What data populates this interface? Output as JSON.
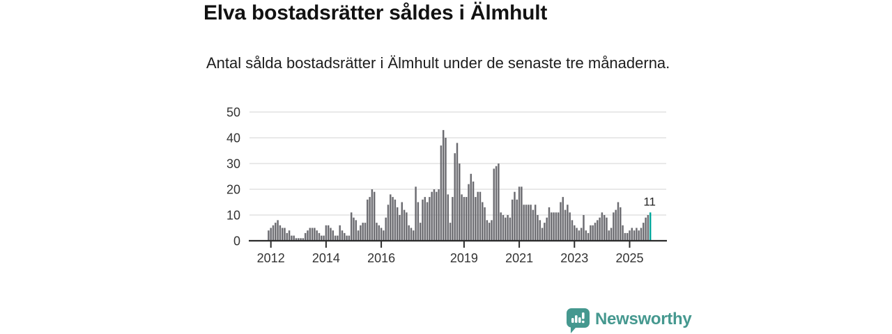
{
  "header": {
    "title": "Elva bostadsrätter såldes i Älmhult",
    "subtitle": "Antal sålda bostadsrätter i Älmhult under de senaste tre månaderna."
  },
  "chart_data": {
    "type": "bar",
    "title": "Elva bostadsrätter såldes i Älmhult",
    "subtitle": "Antal sålda bostadsrätter i Älmhult under de senaste tre månaderna.",
    "frequency": "monthly",
    "start_month": "2011-12",
    "end_month": "2025-10",
    "values": [
      4,
      5,
      6,
      7,
      8,
      6,
      5,
      5,
      3,
      4,
      2,
      2,
      1,
      1,
      1,
      1,
      3,
      4,
      5,
      5,
      5,
      4,
      3,
      2,
      2,
      6,
      6,
      5,
      4,
      2,
      2,
      6,
      4,
      3,
      2,
      2,
      11,
      9,
      8,
      4,
      6,
      7,
      7,
      16,
      17,
      20,
      19,
      7,
      6,
      5,
      4,
      9,
      14,
      18,
      17,
      16,
      13,
      10,
      15,
      12,
      11,
      6,
      5,
      4,
      21,
      15,
      7,
      16,
      17,
      15,
      17,
      19,
      20,
      19,
      20,
      37,
      43,
      40,
      18,
      7,
      17,
      34,
      38,
      30,
      18,
      17,
      17,
      22,
      26,
      23,
      17,
      19,
      19,
      15,
      13,
      8,
      7,
      8,
      28,
      29,
      30,
      11,
      10,
      9,
      10,
      9,
      16,
      19,
      16,
      21,
      21,
      14,
      14,
      14,
      14,
      12,
      14,
      10,
      8,
      5,
      7,
      9,
      13,
      11,
      11,
      11,
      11,
      15,
      17,
      12,
      14,
      11,
      8,
      6,
      5,
      4,
      5,
      10,
      4,
      3,
      6,
      6,
      7,
      8,
      9,
      11,
      10,
      9,
      4,
      5,
      11,
      12,
      15,
      13,
      6,
      3,
      3,
      4,
      5,
      4,
      5,
      4,
      5,
      7,
      9,
      10,
      11
    ],
    "x_ticks": [
      {
        "label": "2012",
        "index": 1
      },
      {
        "label": "2014",
        "index": 25
      },
      {
        "label": "2016",
        "index": 49
      },
      {
        "label": "2019",
        "index": 85
      },
      {
        "label": "2021",
        "index": 109
      },
      {
        "label": "2023",
        "index": 133
      },
      {
        "label": "2025",
        "index": 157
      }
    ],
    "y_ticks": [
      0,
      10,
      20,
      30,
      40,
      50
    ],
    "ylim": [
      0,
      50
    ],
    "grid": true,
    "legend": "none",
    "bar_color": "#6b6b70",
    "highlight_last": true,
    "highlight_color": "#00a79c",
    "last_value_label": "11",
    "axis_color": "#2b2b2b",
    "grid_color": "#dcdcdc",
    "tick_label_color": "#333333"
  },
  "footer": {
    "brand": "Newsworthy",
    "brand_color": "#45988f"
  }
}
